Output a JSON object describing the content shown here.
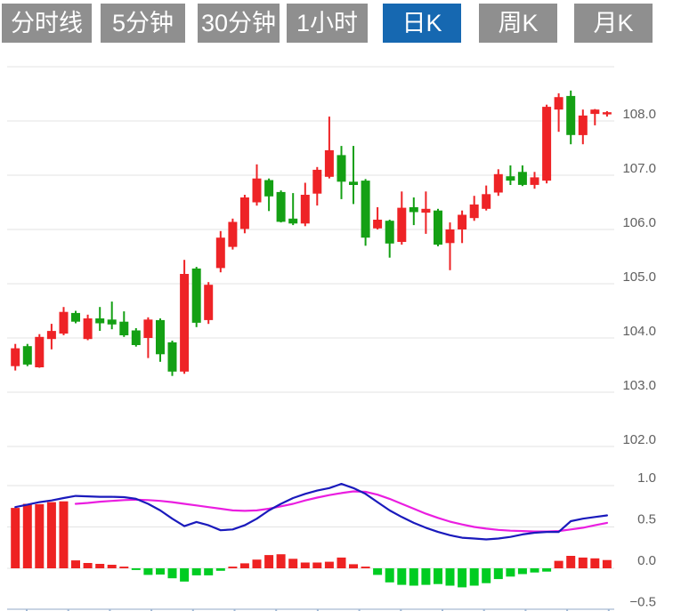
{
  "timeframe_tabs": {
    "items": [
      {
        "label": "分时线",
        "active": false
      },
      {
        "label": "5分钟",
        "active": false
      },
      {
        "label": "30分钟",
        "active": false
      },
      {
        "label": "1小时",
        "active": false
      },
      {
        "label": "日K",
        "active": true
      },
      {
        "label": "周K",
        "active": false
      },
      {
        "label": "月K",
        "active": false
      }
    ]
  },
  "colors": {
    "up": "#ee2326",
    "down": "#14a014",
    "macd_up": "#ee2222",
    "macd_down": "#00cc22",
    "dif_line": "#1a1abc",
    "dea_line": "#ea1ee0",
    "grid": "#e3e3e3",
    "axis_label": "#606060",
    "bottom_axis": "#b6c6da",
    "bottom_tick": "#9fb7d4",
    "tab_bg": "#8f8f8f",
    "tab_active_bg": "#1668b1",
    "tab_text": "#ffffff"
  },
  "chart_data": [
    {
      "type": "candlestick",
      "panel": "price",
      "title": "",
      "xlabel": "",
      "ylabel": "",
      "legend_position": "none",
      "grid": true,
      "ylim": [
        101.8,
        109.1
      ],
      "yticks": [
        109,
        108,
        107,
        106,
        105,
        104,
        103,
        102
      ],
      "ytick_labels": [
        "",
        "108.0",
        "107.0",
        "106.0",
        "105.0",
        "104.0",
        "103.0",
        "102.0"
      ],
      "up_color_meaning": "red = rising candle, green = falling candle",
      "candles": [
        {
          "o": 103.48,
          "h": 103.89,
          "l": 103.4,
          "c": 103.81
        },
        {
          "o": 103.85,
          "h": 103.89,
          "l": 103.48,
          "c": 103.51
        },
        {
          "o": 103.46,
          "h": 104.07,
          "l": 103.45,
          "c": 104.02
        },
        {
          "o": 103.98,
          "h": 104.26,
          "l": 103.79,
          "c": 104.13
        },
        {
          "o": 104.08,
          "h": 104.57,
          "l": 104.05,
          "c": 104.48
        },
        {
          "o": 104.46,
          "h": 104.5,
          "l": 104.27,
          "c": 104.3
        },
        {
          "o": 103.98,
          "h": 104.43,
          "l": 103.96,
          "c": 104.36
        },
        {
          "o": 104.36,
          "h": 104.57,
          "l": 104.13,
          "c": 104.27
        },
        {
          "o": 104.34,
          "h": 104.67,
          "l": 104.16,
          "c": 104.25
        },
        {
          "o": 104.3,
          "h": 104.49,
          "l": 104.02,
          "c": 104.05
        },
        {
          "o": 104.14,
          "h": 104.18,
          "l": 103.84,
          "c": 103.87
        },
        {
          "o": 104.0,
          "h": 104.38,
          "l": 103.63,
          "c": 104.34
        },
        {
          "o": 104.33,
          "h": 104.36,
          "l": 103.56,
          "c": 103.7
        },
        {
          "o": 103.92,
          "h": 103.95,
          "l": 103.3,
          "c": 103.38
        },
        {
          "o": 103.38,
          "h": 105.44,
          "l": 103.34,
          "c": 105.18
        },
        {
          "o": 105.28,
          "h": 105.31,
          "l": 104.2,
          "c": 104.28
        },
        {
          "o": 104.33,
          "h": 105.03,
          "l": 104.26,
          "c": 104.98
        },
        {
          "o": 105.29,
          "h": 105.97,
          "l": 105.21,
          "c": 105.85
        },
        {
          "o": 105.68,
          "h": 106.2,
          "l": 105.63,
          "c": 106.14
        },
        {
          "o": 106.01,
          "h": 106.64,
          "l": 105.93,
          "c": 106.59
        },
        {
          "o": 106.5,
          "h": 107.2,
          "l": 106.44,
          "c": 106.94
        },
        {
          "o": 106.91,
          "h": 106.94,
          "l": 106.34,
          "c": 106.61
        },
        {
          "o": 106.69,
          "h": 106.72,
          "l": 106.13,
          "c": 106.14
        },
        {
          "o": 106.2,
          "h": 106.67,
          "l": 106.08,
          "c": 106.11
        },
        {
          "o": 106.11,
          "h": 106.86,
          "l": 106.06,
          "c": 106.64
        },
        {
          "o": 106.66,
          "h": 107.15,
          "l": 106.44,
          "c": 107.1
        },
        {
          "o": 106.97,
          "h": 108.08,
          "l": 106.94,
          "c": 107.46
        },
        {
          "o": 107.37,
          "h": 107.54,
          "l": 106.56,
          "c": 106.88
        },
        {
          "o": 106.88,
          "h": 107.54,
          "l": 106.47,
          "c": 106.82
        },
        {
          "o": 106.9,
          "h": 106.93,
          "l": 105.7,
          "c": 105.85
        },
        {
          "o": 106.02,
          "h": 106.41,
          "l": 106.0,
          "c": 106.18
        },
        {
          "o": 106.16,
          "h": 106.18,
          "l": 105.48,
          "c": 105.74
        },
        {
          "o": 105.77,
          "h": 106.7,
          "l": 105.72,
          "c": 106.4
        },
        {
          "o": 106.41,
          "h": 106.59,
          "l": 106.08,
          "c": 106.32
        },
        {
          "o": 106.31,
          "h": 106.7,
          "l": 105.92,
          "c": 106.38
        },
        {
          "o": 106.35,
          "h": 106.38,
          "l": 105.69,
          "c": 105.72
        },
        {
          "o": 105.75,
          "h": 106.13,
          "l": 105.25,
          "c": 106.0
        },
        {
          "o": 106.0,
          "h": 106.35,
          "l": 105.75,
          "c": 106.27
        },
        {
          "o": 106.21,
          "h": 106.62,
          "l": 106.16,
          "c": 106.46
        },
        {
          "o": 106.38,
          "h": 106.81,
          "l": 106.35,
          "c": 106.65
        },
        {
          "o": 106.68,
          "h": 107.11,
          "l": 106.62,
          "c": 107.02
        },
        {
          "o": 106.98,
          "h": 107.18,
          "l": 106.82,
          "c": 106.9
        },
        {
          "o": 107.06,
          "h": 107.18,
          "l": 106.8,
          "c": 106.82
        },
        {
          "o": 106.82,
          "h": 107.06,
          "l": 106.75,
          "c": 106.96
        },
        {
          "o": 106.9,
          "h": 108.3,
          "l": 106.85,
          "c": 108.26
        },
        {
          "o": 108.21,
          "h": 108.51,
          "l": 107.8,
          "c": 108.44
        },
        {
          "o": 108.46,
          "h": 108.56,
          "l": 107.57,
          "c": 107.74
        },
        {
          "o": 107.74,
          "h": 108.21,
          "l": 107.57,
          "c": 108.1
        },
        {
          "o": 108.13,
          "h": 108.22,
          "l": 107.92,
          "c": 108.21
        },
        {
          "o": 108.12,
          "h": 108.18,
          "l": 108.08,
          "c": 108.16
        }
      ]
    },
    {
      "type": "bar",
      "panel": "macd_indicator",
      "title": "",
      "grid": true,
      "ylim": [
        -0.55,
        1.15
      ],
      "yticks": [
        1.0,
        0.5,
        0.0,
        -0.5
      ],
      "ytick_labels": [
        "1.0",
        "0.5",
        "0.0",
        "-0.5"
      ],
      "legend_position": "none",
      "series_notes": "histogram: red positive / green negative; dif = blue line; dea = magenta line",
      "histogram": [
        0.73,
        0.78,
        0.775,
        0.8,
        0.81,
        0.096,
        0.064,
        0.054,
        0.043,
        0.02,
        -0.02,
        -0.08,
        -0.075,
        -0.12,
        -0.16,
        -0.085,
        -0.085,
        -0.03,
        0.02,
        0.06,
        0.105,
        0.16,
        0.17,
        0.115,
        0.07,
        0.07,
        0.08,
        0.13,
        0.05,
        0.02,
        -0.08,
        -0.17,
        -0.2,
        -0.21,
        -0.2,
        -0.19,
        -0.21,
        -0.23,
        -0.21,
        -0.18,
        -0.13,
        -0.1,
        -0.07,
        -0.05,
        -0.04,
        0.09,
        0.15,
        0.13,
        0.12,
        0.1
      ],
      "dif": [
        0.74,
        0.77,
        0.8,
        0.82,
        0.85,
        0.875,
        0.87,
        0.865,
        0.865,
        0.86,
        0.84,
        0.78,
        0.7,
        0.6,
        0.51,
        0.56,
        0.52,
        0.46,
        0.47,
        0.52,
        0.6,
        0.7,
        0.78,
        0.85,
        0.9,
        0.94,
        0.97,
        1.02,
        0.97,
        0.9,
        0.8,
        0.7,
        0.62,
        0.55,
        0.49,
        0.44,
        0.4,
        0.37,
        0.36,
        0.35,
        0.36,
        0.38,
        0.41,
        0.43,
        0.44,
        0.44,
        0.57,
        0.6,
        0.62,
        0.64
      ],
      "dea": [
        null,
        null,
        null,
        null,
        null,
        0.78,
        0.79,
        0.805,
        0.815,
        0.825,
        0.83,
        0.825,
        0.815,
        0.8,
        0.78,
        0.76,
        0.74,
        0.72,
        0.7,
        0.695,
        0.7,
        0.72,
        0.75,
        0.78,
        0.82,
        0.855,
        0.885,
        0.91,
        0.93,
        0.925,
        0.89,
        0.84,
        0.78,
        0.72,
        0.66,
        0.61,
        0.565,
        0.53,
        0.5,
        0.48,
        0.465,
        0.455,
        0.45,
        0.445,
        0.445,
        0.45,
        0.47,
        0.49,
        0.52,
        0.55
      ]
    }
  ]
}
